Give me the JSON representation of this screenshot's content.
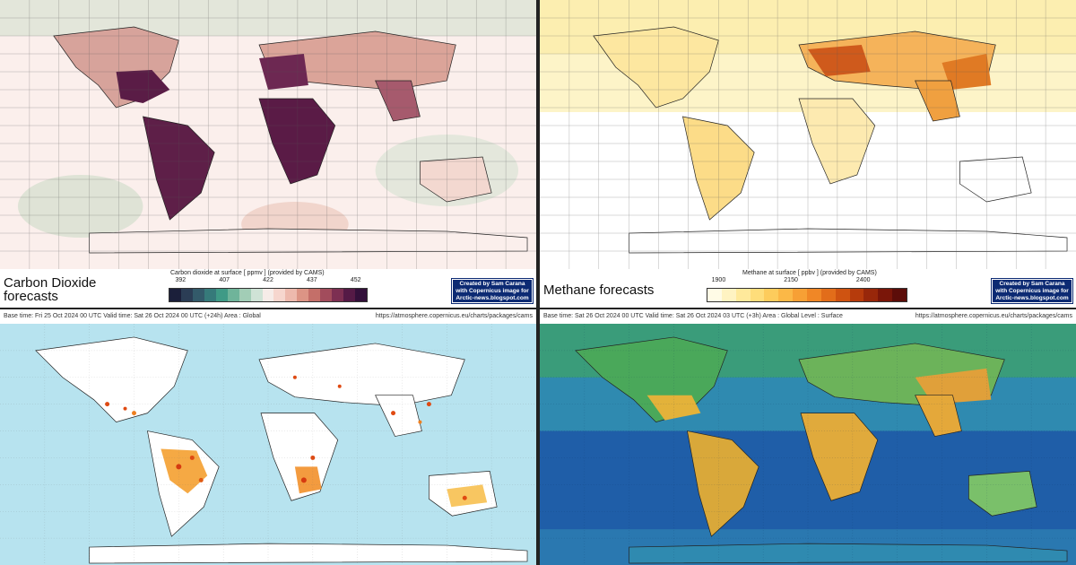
{
  "panels": {
    "co2": {
      "title": "Carbon Dioxide forecasts",
      "colorbar_label": "Carbon dioxide at surface [ ppmv ] (provided by CAMS)",
      "ticks": [
        "392",
        "407",
        "422",
        "437",
        "452"
      ],
      "colors": [
        "#1b1f3a",
        "#2b3d55",
        "#335a6a",
        "#367a7a",
        "#3f9a86",
        "#6fb49a",
        "#a2cdb6",
        "#cfe3d6",
        "#f6ece8",
        "#f6d6ce",
        "#edb9ad",
        "#dc9485",
        "#c46f69",
        "#a24c5c",
        "#7d2f52",
        "#551a46",
        "#33103a"
      ],
      "credit": [
        "Created by Sam Carana",
        "with Copernicus image for",
        "Arctic-news.blogspot.com"
      ]
    },
    "ch4": {
      "title": "Methane forecasts",
      "colorbar_label": "Methane at surface [ ppbv ] (provided by CAMS)",
      "ticks": [
        "1900",
        "2150",
        "2400"
      ],
      "colors": [
        "#fffbe6",
        "#fff3c2",
        "#ffe99b",
        "#fedd7a",
        "#fdcc5c",
        "#fbb847",
        "#f7a035",
        "#f08726",
        "#e26d1a",
        "#cf5311",
        "#b63b0c",
        "#98270a",
        "#7a1609",
        "#5c0d09"
      ],
      "credit": [
        "Created by Sam Carana",
        "with Copernicus image for",
        "Arctic-news.blogspot.com"
      ]
    },
    "fires": {
      "header_left": "Base time: Fri 25 Oct 2024 00 UTC Valid time: Sat 26 Oct 2024 00 UTC (+24h) Area : Global",
      "header_right": "https://atmosphere.copernicus.eu/charts/packages/cams"
    },
    "co": {
      "header_left": "Base time: Sat 26 Oct 2024 00 UTC Valid time: Sat 26 Oct 2024 03 UTC (+3h) Area : Global Level : Surface",
      "header_right": "https://atmosphere.copernicus.eu/charts/packages/cams"
    }
  },
  "colors": {
    "ocean_fires": "#b7e3ef",
    "land_fires": "#ffffff",
    "ocean_co": "#1f5ea8",
    "ocean_co_light": "#2f8ab0",
    "land_co": "#3f9c5a",
    "co2_ocean": "#fbefec",
    "ch4_ocean": "#ffffff",
    "ch4_north": "#fdf4c8"
  }
}
